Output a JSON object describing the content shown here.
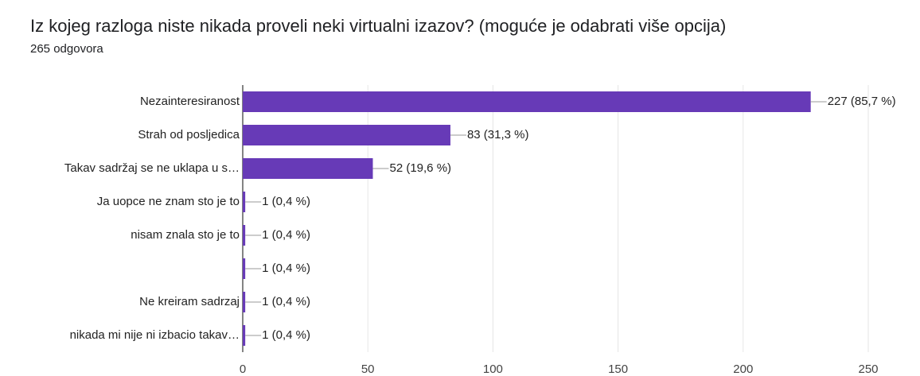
{
  "chart_data": {
    "type": "bar",
    "orientation": "horizontal",
    "title": "Iz kojeg razloga niste nikada proveli neki virtualni izazov? (moguće je odabrati više opcija)",
    "subtitle": "265 odgovora",
    "categories": [
      "Nezainteresiranost",
      "Strah od posljedica",
      "Takav sadržaj se ne uklapa u s…",
      "Ja uopce ne znam sto je to",
      "nisam znala sto je to",
      null,
      "Ne kreiram sadrzaj",
      "nikada mi nije ni izbacio takav…"
    ],
    "values": [
      227,
      83,
      52,
      1,
      1,
      1,
      1,
      1
    ],
    "value_labels": [
      "227 (85,7 %)",
      "83 (31,3 %)",
      "52 (19,6 %)",
      "1 (0,4 %)",
      "1 (0,4 %)",
      "1 (0,4 %)",
      "1 (0,4 %)",
      "1 (0,4 %)"
    ],
    "color": "#673ab7",
    "xlim": [
      0,
      250
    ],
    "xticks": [
      0,
      50,
      100,
      150,
      200,
      250
    ],
    "grid": true
  }
}
